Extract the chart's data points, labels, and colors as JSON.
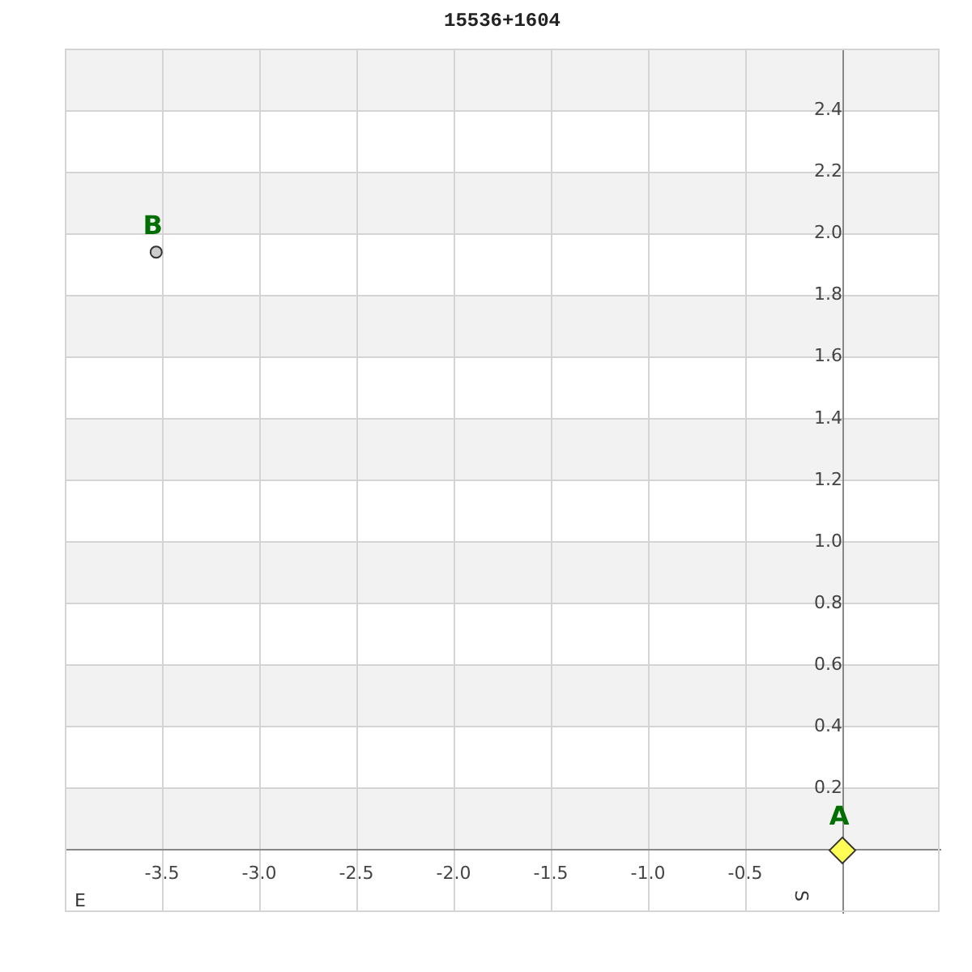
{
  "chart_data": {
    "type": "scatter",
    "title": "15536+1604",
    "xlabel": "E",
    "ylabel": "S",
    "xlim": [
      -4,
      0.5
    ],
    "ylim": [
      -0.2,
      2.6
    ],
    "xticks": [
      -3.5,
      {
        "value": -3,
        "label": "-3.0"
      },
      -2.5,
      {
        "value": -2,
        "label": "-2.0"
      },
      -1.5,
      {
        "value": -1,
        "label": "-1.0"
      },
      -0.5
    ],
    "yticks": [
      0.2,
      0.4,
      0.6,
      0.8,
      {
        "value": 1,
        "label": "1.0"
      },
      1.2,
      1.4,
      1.6,
      1.8,
      {
        "value": 2,
        "label": "2.0"
      },
      2.2,
      2.4
    ],
    "grid": true,
    "legend": false,
    "bands": [
      {
        "axis": "y",
        "from": 0,
        "to": 0.2,
        "color": "#f2f2f2"
      },
      {
        "axis": "y",
        "from": 0.4,
        "to": 0.6,
        "color": "#f2f2f2"
      },
      {
        "axis": "y",
        "from": 0.8,
        "to": 1.0,
        "color": "#f2f2f2"
      },
      {
        "axis": "y",
        "from": 1.2,
        "to": 1.4,
        "color": "#f2f2f2"
      },
      {
        "axis": "y",
        "from": 1.6,
        "to": 1.8,
        "color": "#f2f2f2"
      },
      {
        "axis": "y",
        "from": 2.0,
        "to": 2.2,
        "color": "#f2f2f2"
      },
      {
        "axis": "y",
        "from": 2.4,
        "to": 2.6,
        "color": "#f2f2f2"
      }
    ],
    "series": [
      {
        "name": "A",
        "color": "#ffff55",
        "marker": "diamond",
        "x": [
          0
        ],
        "values": [
          0
        ]
      },
      {
        "name": "B",
        "color": "#cccccc",
        "marker": "circle",
        "x": [
          -3.53
        ],
        "values": [
          1.94
        ]
      }
    ]
  }
}
